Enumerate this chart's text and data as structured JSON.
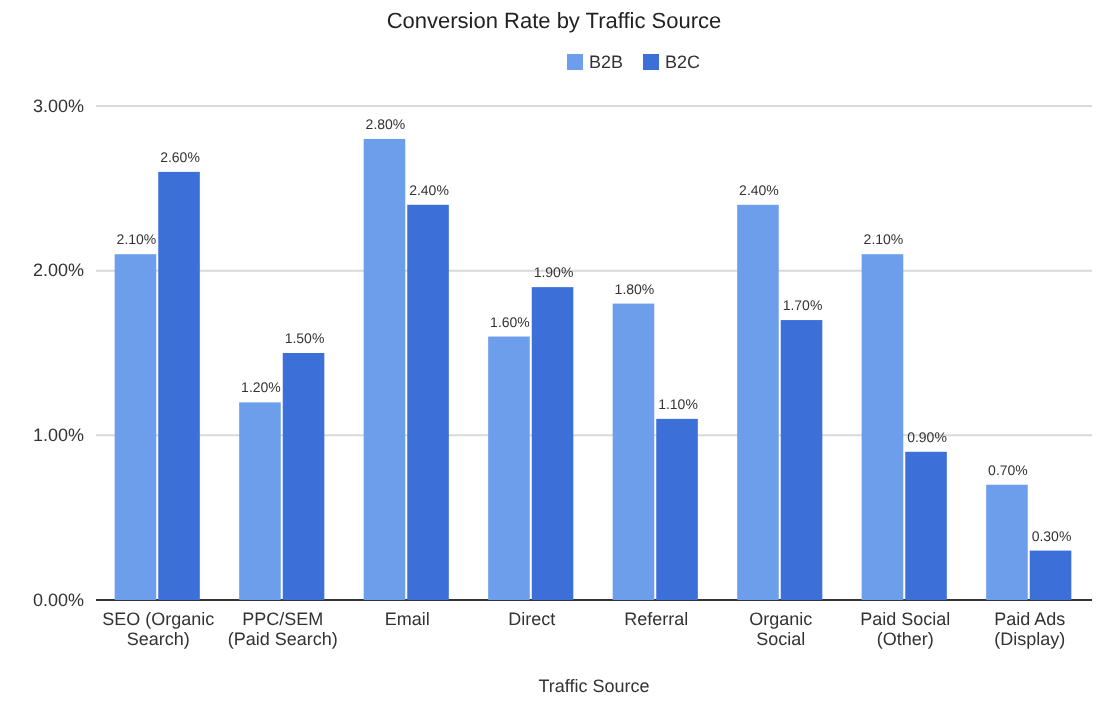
{
  "chart_data": {
    "type": "bar",
    "title": "Conversion Rate by Traffic Source",
    "xlabel": "Traffic Source",
    "categories": [
      "SEO (Organic Search)",
      "PPC/SEM (Paid Search)",
      "Email",
      "Direct",
      "Referral",
      "Organic Social",
      "Paid Social (Other)",
      "Paid Ads (Display)"
    ],
    "series": [
      {
        "name": "B2B",
        "color": "#6d9eeb",
        "values": [
          2.1,
          1.2,
          2.8,
          1.6,
          1.8,
          2.4,
          2.1,
          0.7
        ],
        "value_labels": [
          "2.10%",
          "1.20%",
          "2.80%",
          "1.60%",
          "1.80%",
          "2.40%",
          "2.10%",
          "0.70%"
        ]
      },
      {
        "name": "B2C",
        "color": "#3d6fd8",
        "values": [
          2.6,
          1.5,
          2.4,
          1.9,
          1.1,
          1.7,
          0.9,
          0.3
        ],
        "value_labels": [
          "2.60%",
          "1.50%",
          "2.40%",
          "1.90%",
          "1.10%",
          "1.70%",
          "0.90%",
          "0.30%"
        ]
      }
    ],
    "ylim": [
      0,
      3
    ],
    "yticks": [
      {
        "value": 0,
        "label": "0.00%"
      },
      {
        "value": 1,
        "label": "1.00%"
      },
      {
        "value": 2,
        "label": "2.00%"
      },
      {
        "value": 3,
        "label": "3.00%"
      }
    ],
    "grid": "y",
    "legend": "top"
  }
}
